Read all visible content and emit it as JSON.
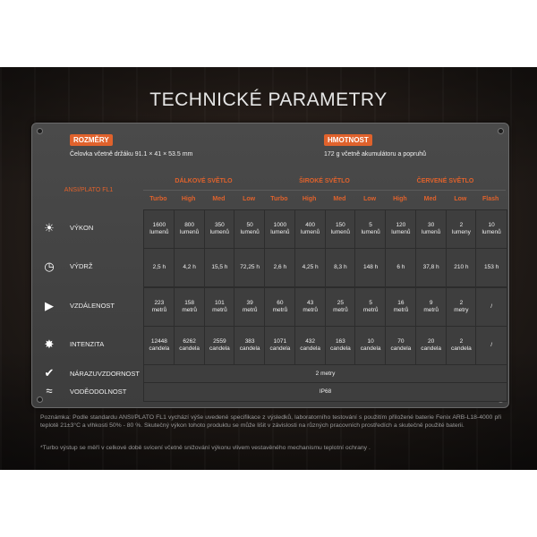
{
  "title": "TECHNICKÉ PARAMETRY",
  "dimensions": {
    "label": "ROZMĚRY",
    "value": "Čelovka včetně držáku 91.1 × 41 × 53.5 mm"
  },
  "weight": {
    "label": "HMOTNOST",
    "value": "172 g včetně akumulátoru a popruhů"
  },
  "standard_label": "ANSI/PLATO FL1",
  "groups": [
    "DÁLKOVÉ SVĚTLO",
    "ŠIROKÉ SVĚTLO",
    "ČERVENÉ SVĚTLO"
  ],
  "modes": [
    "Turbo",
    "High",
    "Med",
    "Low",
    "Turbo",
    "High",
    "Med",
    "Low",
    "High",
    "Med",
    "Low",
    "Flash"
  ],
  "rows": [
    {
      "label": "VÝKON",
      "icon": "light-beam-icon",
      "values": [
        "1600\nlumenů",
        "800\nlumenů",
        "350\nlumenů",
        "50\nlumenů",
        "1000\nlumenů",
        "400\nlumenů",
        "150\nlumenů",
        "5\nlumenů",
        "120\nlumenů",
        "30\nlumenů",
        "2\nlumeny",
        "10\nlumenů"
      ]
    },
    {
      "label": "VÝDRŽ",
      "icon": "clock-icon",
      "values": [
        "2,5 h",
        "4,2 h",
        "15,5 h",
        "72,25 h",
        "2,6 h",
        "4,25 h",
        "8,3 h",
        "148 h",
        "6 h",
        "37,8 h",
        "210 h",
        "153 h"
      ]
    },
    {
      "label": "VZDÁLENOST",
      "icon": "distance-icon",
      "values": [
        "223\nmetrů",
        "158\nmetrů",
        "101\nmetrů",
        "39\nmetrů",
        "60\nmetrů",
        "43\nmetrů",
        "25\nmetrů",
        "5\nmetrů",
        "16\nmetrů",
        "9\nmetrů",
        "2\nmetry",
        "/"
      ]
    },
    {
      "label": "INTENZITA",
      "icon": "intensity-icon",
      "values": [
        "12448\ncandela",
        "6262\ncandela",
        "2559\ncandela",
        "383\ncandela",
        "1071\ncandela",
        "432\ncandela",
        "163\ncandela",
        "10\ncandela",
        "70\ncandela",
        "20\ncandela",
        "2\ncandela",
        "/"
      ]
    }
  ],
  "impact": {
    "label": "NÁRAZUVZDORNOST",
    "value": "2 metry",
    "icon": "impact-icon"
  },
  "water": {
    "label": "VODĚODOLNOST",
    "value": "IP68",
    "icon": "water-icon"
  },
  "note1": "Poznámka: Podle standardu ANSI/PLATO FL1 vychází výše uvedené specifikace z výsledků, laboratorního testování s použitím přiložené baterie Fenix ARB-L18-4000 při teplotě 21±3°C a vlhkosti 50% - 80 %. Skutečný výkon tohoto produktu se může lišit v závislosti na různých pracovních prostředích a skutečně použité baterii.",
  "note2": "*Turbo výstup se měří v celkové době svícení včetně snižování výkonu vlivem vestavěného mechanismu teplotní ochrany ."
}
